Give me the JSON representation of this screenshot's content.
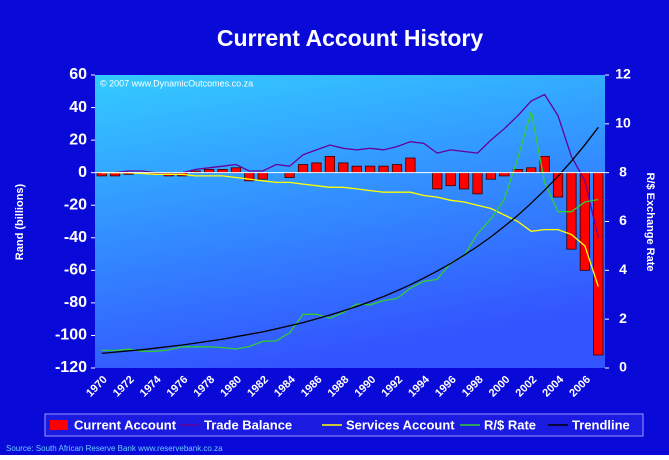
{
  "chart_data": {
    "type": "combo",
    "title": "Current Account History",
    "y_label": "Rand (billions)",
    "y2_label": "R/$ Exchange Rate",
    "copyright": "© 2007 www.DynamicOutcomes.co.za",
    "source": "Source:  South African Reserve Bank   www.reservebank.co.za",
    "categories": [
      "1970",
      null,
      "1972",
      null,
      "1974",
      null,
      "1976",
      null,
      "1978",
      null,
      "1980",
      null,
      "1982",
      null,
      "1984",
      null,
      "1986",
      null,
      "1988",
      null,
      "1990",
      null,
      "1992",
      null,
      "1994",
      null,
      "1996",
      null,
      "1998",
      null,
      "2000",
      null,
      "2002",
      null,
      "2004",
      null,
      "2006",
      null
    ],
    "ylim": [
      -120,
      60
    ],
    "yticks": [
      -120,
      -100,
      -80,
      -60,
      -40,
      -20,
      0,
      20,
      40,
      60
    ],
    "y2lim": [
      0,
      12
    ],
    "y2ticks": [
      0,
      2,
      4,
      6,
      8,
      10,
      12
    ],
    "grid": false,
    "legend": "bottom",
    "series": [
      {
        "name": "Current Account",
        "kind": "bar",
        "color": "#ff0000",
        "values": [
          -2,
          -2,
          -1,
          0,
          -1,
          -2,
          -2,
          1,
          2,
          2,
          3,
          -5,
          -4,
          0,
          -3,
          5,
          6,
          10,
          6,
          4,
          4,
          4,
          5,
          9,
          0,
          -10,
          -8,
          -10,
          -13,
          -4,
          -2,
          2,
          3,
          10,
          -15,
          -47,
          -60,
          -112
        ]
      },
      {
        "name": "Trade Balance",
        "kind": "line",
        "color": "#660099",
        "values": [
          0,
          0,
          1,
          1,
          0,
          -1,
          0,
          2,
          3,
          4,
          5,
          1,
          1,
          5,
          4,
          11,
          14,
          17,
          15,
          14,
          15,
          14,
          16,
          19,
          18,
          12,
          14,
          13,
          12,
          20,
          27,
          35,
          44,
          48,
          35,
          10,
          -5,
          -40
        ]
      },
      {
        "name": "Services Account",
        "kind": "line",
        "color": "#ffff00",
        "values": [
          0,
          0,
          0,
          -0.5,
          -1,
          -1,
          -1,
          -2,
          -2,
          -2,
          -3,
          -4,
          -5,
          -6,
          -6,
          -7,
          -8,
          -9,
          -9,
          -10,
          -11,
          -12,
          -12,
          -12,
          -14,
          -15,
          -17,
          -18,
          -20,
          -22,
          -26,
          -30,
          -36,
          -35,
          -35,
          -38,
          -45,
          -70
        ]
      },
      {
        "name": "R/$ Rate",
        "kind": "line",
        "color": "#33cc33",
        "axis": "y2",
        "values": [
          0.72,
          0.72,
          0.77,
          0.69,
          0.68,
          0.74,
          0.87,
          0.87,
          0.87,
          0.84,
          0.78,
          0.88,
          1.09,
          1.11,
          1.44,
          2.2,
          2.2,
          2.04,
          2.27,
          2.62,
          2.59,
          2.76,
          2.85,
          3.27,
          3.55,
          3.63,
          4.3,
          4.6,
          5.5,
          6.1,
          6.9,
          8.6,
          10.5,
          7.6,
          6.4,
          6.4,
          6.8,
          6.9
        ]
      },
      {
        "name": "Trendline",
        "kind": "line",
        "color": "#000000",
        "axis": "y2",
        "values": [
          0.6,
          0.65,
          0.7,
          0.75,
          0.81,
          0.88,
          0.94,
          1.02,
          1.1,
          1.18,
          1.28,
          1.38,
          1.48,
          1.6,
          1.73,
          1.86,
          2.01,
          2.17,
          2.34,
          2.52,
          2.72,
          2.93,
          3.16,
          3.41,
          3.68,
          3.97,
          4.28,
          4.62,
          4.98,
          5.37,
          5.8,
          6.25,
          6.75,
          7.28,
          7.85,
          8.47,
          9.14,
          9.86
        ]
      }
    ]
  }
}
